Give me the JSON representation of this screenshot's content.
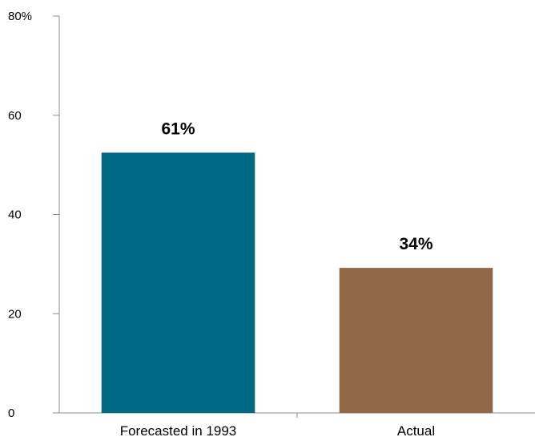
{
  "chart_data": {
    "type": "bar",
    "categories": [
      "Forecasted in 1993",
      "Actual"
    ],
    "values": [
      61,
      34
    ],
    "data_labels": [
      "61%",
      "34%"
    ],
    "bar_colors": [
      "#006a85",
      "#936848"
    ],
    "ylim": [
      0,
      80
    ],
    "yticks": [
      0,
      20,
      40,
      60,
      80
    ],
    "ytick_labels": [
      "0",
      "20",
      "40",
      "60",
      "80%"
    ],
    "title": "",
    "xlabel": "",
    "ylabel": "",
    "grid": false,
    "legend": "none"
  }
}
